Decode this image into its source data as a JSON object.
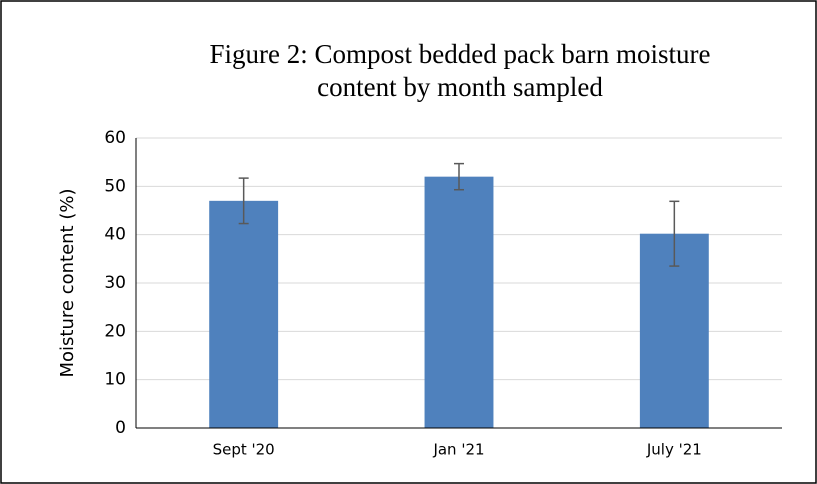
{
  "chart_data": {
    "type": "bar",
    "title": [
      "Figure 2: Compost bedded pack barn moisture",
      "content by month sampled"
    ],
    "y_label": "Moisture content (%)",
    "categories": [
      "Sept '20",
      "Jan '21",
      "July '21"
    ],
    "values": [
      47,
      52,
      40.2
    ],
    "errors": [
      4.7,
      2.7,
      6.7
    ],
    "color": "#4f81bd",
    "error_color": "#595959",
    "ylim": [
      0,
      60
    ],
    "yticks": [
      0,
      10,
      20,
      30,
      40,
      50,
      60
    ],
    "grid": true
  }
}
